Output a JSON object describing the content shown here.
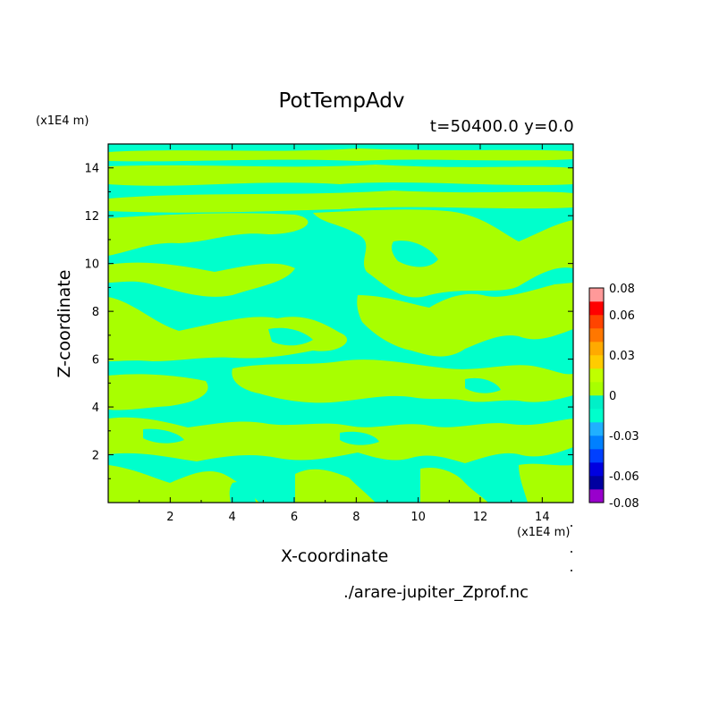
{
  "chart_data": {
    "type": "heatmap",
    "title": "PotTempAdv",
    "subtitle": "t=50400.0 y=0.0",
    "xlabel": "X-coordinate",
    "ylabel": "Z-coordinate",
    "x_unit_label": "(x1E4 m)",
    "y_unit_label": "(x1E4 m)",
    "xlim": [
      0,
      15
    ],
    "ylim": [
      0,
      15
    ],
    "x_ticks": [
      "2",
      "4",
      "6",
      "8",
      "10",
      "12",
      "14"
    ],
    "y_ticks": [
      "2",
      "4",
      "6",
      "8",
      "10",
      "12",
      "14"
    ],
    "colorbar": {
      "levels": [
        -0.08,
        -0.07,
        -0.06,
        -0.05,
        -0.04,
        -0.03,
        -0.02,
        -0.01,
        0,
        0.01,
        0.02,
        0.03,
        0.04,
        0.05,
        0.06,
        0.07,
        0.08
      ],
      "colors": [
        "#9900cc",
        "#0000a0",
        "#0000e0",
        "#0040ff",
        "#0080ff",
        "#20b0ff",
        "#00ffcc",
        "#00f0c8",
        "#a8ff00",
        "#c0ff00",
        "#ffcc00",
        "#ffaa00",
        "#ff7700",
        "#ff4400",
        "#ff0000",
        "#ff9999"
      ],
      "tick_labels": [
        "0.08",
        "0.06",
        "0.03",
        "0",
        "-0.03",
        "-0.06",
        "-0.08"
      ]
    },
    "field_colors": {
      "negative_small": "#00ffcc",
      "positive_small": "#a8ff00"
    },
    "grid": false,
    "source_file": "./arare-jupiter_Zprof.nc"
  }
}
